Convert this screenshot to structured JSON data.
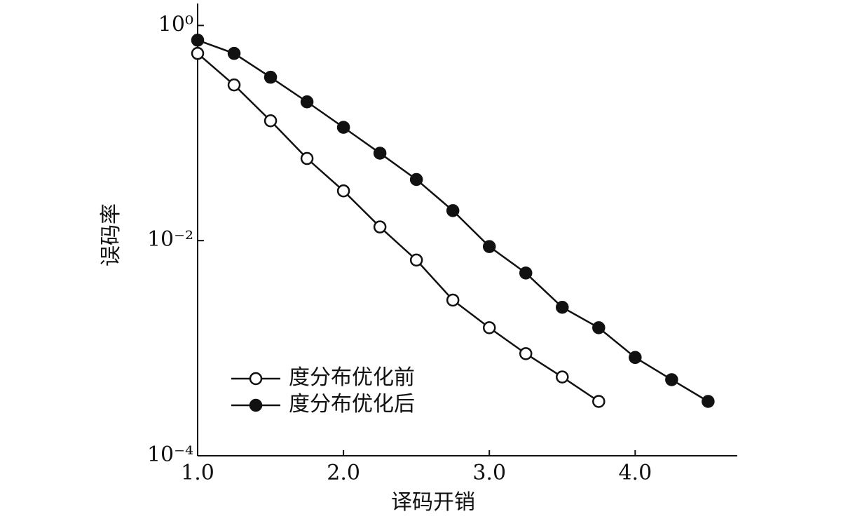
{
  "chart_data": {
    "type": "line",
    "x_label": "译码开销",
    "y_label": "误码率",
    "x": [
      1.0,
      1.25,
      1.5,
      1.75,
      2.0,
      2.25,
      2.5,
      2.75,
      3.0,
      3.25,
      3.5,
      3.75,
      4.0,
      4.25,
      4.5
    ],
    "series": [
      {
        "name": "度分布优化前",
        "color": "#111111",
        "marker": "open-circle",
        "values": [
          0.55,
          0.28,
          0.13,
          0.058,
          0.029,
          0.0134,
          0.0066,
          0.0028,
          0.00155,
          0.00089,
          0.00054,
          0.00032,
          null,
          null,
          null
        ]
      },
      {
        "name": "度分布优化后",
        "color": "#111111",
        "marker": "filled-circle",
        "values": [
          0.73,
          0.55,
          0.33,
          0.195,
          0.113,
          0.065,
          0.037,
          0.019,
          0.0088,
          0.005,
          0.0024,
          0.00155,
          0.00082,
          0.00051,
          0.00032
        ]
      }
    ],
    "xlim": [
      1.0,
      4.7
    ],
    "ylim": [
      0.0001,
      1.6
    ],
    "y_scale": "log",
    "xticks": [
      {
        "value": 1,
        "label": "1.0"
      },
      {
        "value": 2,
        "label": "2.0"
      },
      {
        "value": 3,
        "label": "3.0"
      },
      {
        "value": 4,
        "label": "4.0"
      }
    ],
    "yticks": [
      {
        "value": 0.0001,
        "label": "10⁻⁴"
      },
      {
        "value": 0.01,
        "label": "10⁻²"
      },
      {
        "value": 1,
        "label": "10⁰"
      }
    ],
    "legend": "lower left"
  }
}
